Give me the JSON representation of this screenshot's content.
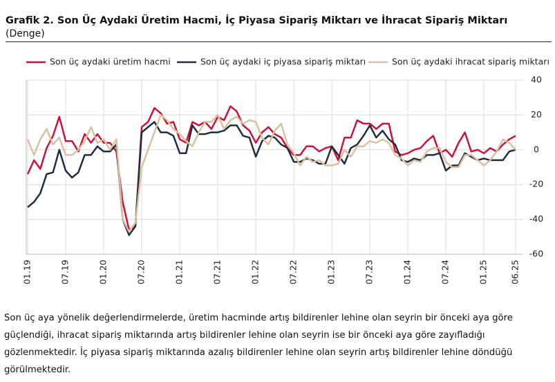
{
  "chart_data": {
    "type": "line",
    "title": "Grafik 2. Son Üç Aydaki Üretim Hacmi, İç Piyasa Sipariş Miktarı ve İhracat Sipariş Miktarı",
    "subtitle": "(Denge)",
    "categories": [
      "01.19",
      null,
      null,
      null,
      null,
      null,
      "07.19",
      null,
      null,
      null,
      null,
      null,
      "01.20",
      null,
      null,
      null,
      null,
      null,
      "07.20",
      null,
      null,
      null,
      null,
      null,
      "01.21",
      null,
      null,
      null,
      null,
      null,
      "07.21",
      null,
      null,
      null,
      null,
      null,
      "01.22",
      null,
      null,
      null,
      null,
      null,
      "07.22",
      null,
      null,
      null,
      null,
      null,
      "01.23",
      null,
      null,
      null,
      null,
      null,
      "07.23",
      null,
      null,
      null,
      null,
      null,
      "01.24",
      null,
      null,
      null,
      null,
      null,
      "07.24",
      null,
      null,
      null,
      null,
      null,
      "01.25",
      null,
      null,
      null,
      null,
      "06.25"
    ],
    "series": [
      {
        "name": "Son üç aydaki üretim hacmi",
        "color": "#d0103a",
        "values": [
          -14,
          -6,
          -11,
          1,
          8,
          19,
          5,
          5,
          -1,
          9,
          4,
          9,
          4,
          4,
          -1,
          -30,
          -46,
          -44,
          13,
          16,
          24,
          21,
          15,
          16,
          6,
          4,
          16,
          14,
          16,
          12,
          19,
          17,
          25,
          22,
          14,
          11,
          4,
          10,
          13,
          9,
          7,
          1,
          -3,
          -3,
          2,
          2,
          -1,
          1,
          2,
          -6,
          7,
          7,
          17,
          15,
          15,
          12,
          15,
          15,
          -1,
          -3,
          -2,
          0,
          1,
          5,
          8,
          -2,
          0,
          -4,
          4,
          10,
          -1,
          0,
          -2,
          1,
          -1,
          3,
          6,
          8
        ]
      },
      {
        "name": "Son üç aydaki iç piyasa sipariş miktarı",
        "color": "#1f2d3d",
        "values": [
          -33,
          -30,
          -25,
          -14,
          -13,
          0,
          -12,
          -16,
          -13,
          -3,
          -3,
          2,
          -1,
          -1,
          3,
          -40,
          -49,
          -44,
          10,
          13,
          16,
          10,
          10,
          8,
          -2,
          -2,
          14,
          9,
          9,
          10,
          10,
          11,
          14,
          14,
          8,
          7,
          -4,
          5,
          8,
          7,
          3,
          1,
          -7,
          -7,
          -5,
          -6,
          -8,
          -8,
          2,
          -3,
          -8,
          1,
          3,
          8,
          14,
          7,
          11,
          6,
          3,
          -6,
          -7,
          -5,
          -6,
          -3,
          -3,
          -2,
          -12,
          -9,
          -9,
          -2,
          -4,
          -6,
          -5,
          -6,
          -6,
          -6,
          -1,
          0
        ]
      },
      {
        "name": "Son üç aydaki ihracat sipariş miktarı",
        "color": "#d9c1a0",
        "values": [
          6,
          -3,
          6,
          12,
          3,
          7,
          -3,
          -3,
          0,
          5,
          13,
          4,
          6,
          0,
          6,
          -40,
          -47,
          -42,
          -10,
          0,
          10,
          20,
          17,
          12,
          9,
          5,
          2,
          10,
          16,
          16,
          20,
          12,
          17,
          19,
          15,
          17,
          16,
          7,
          3,
          11,
          15,
          3,
          -2,
          -9,
          -4,
          -7,
          -6,
          -9,
          -9,
          -8,
          0,
          -4,
          2,
          2,
          5,
          4,
          6,
          4,
          -3,
          -5,
          -9,
          -6,
          -7,
          -1,
          1,
          1,
          -7,
          -10,
          -10,
          -3,
          -3,
          -6,
          -9,
          -6,
          -1,
          6,
          4,
          0
        ]
      }
    ],
    "ylim": [
      -60,
      40
    ],
    "yticks": [
      40,
      20,
      0,
      -20,
      -40,
      -60
    ],
    "grid": true,
    "note": "Son üç aya yönelik değerlendirmelerde, üretim hacminde artış bildirenler lehine olan seyrin bir önceki aya göre güçlendiği, ihracat sipariş miktarında artış bildirenler lehine olan seyrin ise bir önceki aya göre zayıfladığı gözlenmektedir. İç piyasa sipariş miktarında azalış bildirenler lehine olan seyrin artış bildirenler lehine döndüğü görülmektedir."
  }
}
